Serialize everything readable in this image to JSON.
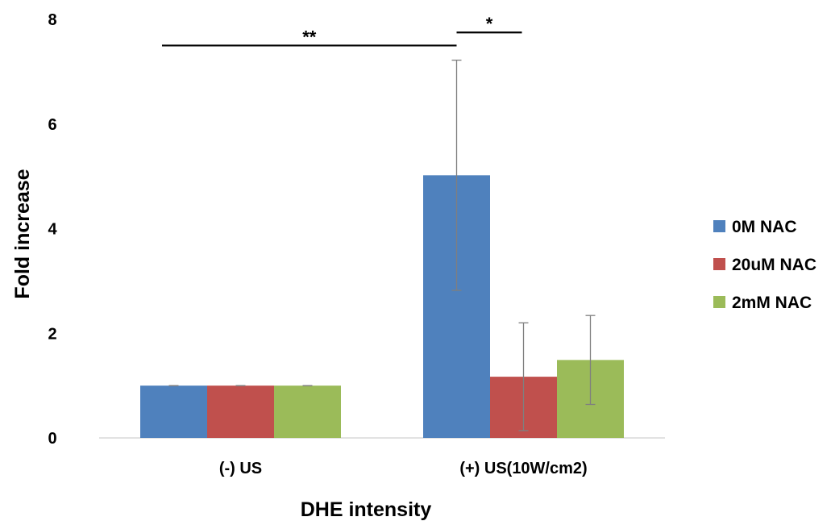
{
  "chart_data": {
    "type": "bar",
    "categories": [
      "(-) US",
      "(+) US(10W/cm2)"
    ],
    "series": [
      {
        "name": "0M NAC",
        "values": [
          1.0,
          5.02
        ],
        "errors": [
          0.0,
          2.2
        ],
        "color": "#4f81bd"
      },
      {
        "name": "20uM NAC",
        "values": [
          1.0,
          1.17
        ],
        "errors": [
          0.0,
          1.03
        ],
        "color": "#c0504d"
      },
      {
        "name": "2mM NAC",
        "values": [
          1.0,
          1.49
        ],
        "errors": [
          0.0,
          0.85
        ],
        "color": "#9bbb59"
      }
    ],
    "xlabel": "DHE intensity",
    "ylabel": "Fold increase",
    "ylim": [
      0,
      8
    ],
    "yticks": [
      0,
      2,
      4,
      6,
      8
    ],
    "legend_position": "right",
    "grid": false,
    "significance": [
      {
        "label": "**",
        "from": "(-) US / 0M NAC",
        "to": "(+) US(10W/cm2) / 0M NAC",
        "y": 7.5
      },
      {
        "label": "*",
        "from": "(+) US(10W/cm2) / 0M NAC",
        "to": "(+) US(10W/cm2) / 20uM NAC",
        "y": 7.75
      }
    ]
  }
}
